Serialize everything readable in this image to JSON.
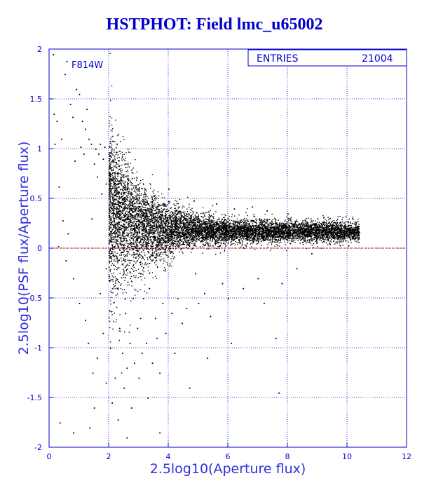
{
  "chart_data": {
    "type": "scatter",
    "title": "HSTPHOT: Field lmc_u65002",
    "xlabel": "2.5log10(Aperture flux)",
    "ylabel": "2.5log10(PSF flux/Aperture flux)",
    "xlim": [
      0,
      12
    ],
    "ylim": [
      -2,
      2
    ],
    "xticks": [
      "0",
      "2",
      "4",
      "6",
      "8",
      "10",
      "12"
    ],
    "yticks": [
      "-2",
      "-1.5",
      "-1",
      "-0.5",
      "0",
      "0.5",
      "1",
      "1.5",
      "2"
    ],
    "grid": true,
    "annotation": "F814W",
    "stats": {
      "label": "ENTRIES",
      "value": "21004"
    },
    "reference_line": {
      "y": 0,
      "color": "#cc0000"
    },
    "marker_color": "#000000",
    "grid_color": "#0000d0",
    "points": [
      [
        0.12,
        1.95
      ],
      [
        0.15,
        1.35
      ],
      [
        0.18,
        1.05
      ],
      [
        0.25,
        1.28
      ],
      [
        0.32,
        0.62
      ],
      [
        0.4,
        1.1
      ],
      [
        0.45,
        0.28
      ],
      [
        0.52,
        1.75
      ],
      [
        0.58,
        1.88
      ],
      [
        0.62,
        0.15
      ],
      [
        0.7,
        1.45
      ],
      [
        0.78,
        1.32
      ],
      [
        0.85,
        0.88
      ],
      [
        0.9,
        1.6
      ],
      [
        1.0,
        1.55
      ],
      [
        1.05,
        1.02
      ],
      [
        1.1,
        1.28
      ],
      [
        1.15,
        0.95
      ],
      [
        1.2,
        1.2
      ],
      [
        1.25,
        1.4
      ],
      [
        1.32,
        1.1
      ],
      [
        1.4,
        1.05
      ],
      [
        1.42,
        0.3
      ],
      [
        1.5,
        0.85
      ],
      [
        1.55,
        1.0
      ],
      [
        1.6,
        0.72
      ],
      [
        1.65,
        0.95
      ],
      [
        1.7,
        1.05
      ],
      [
        1.75,
        0.55
      ],
      [
        1.8,
        0.9
      ],
      [
        1.85,
        1.02
      ],
      [
        1.9,
        0.65
      ],
      [
        0.3,
        0.02
      ],
      [
        0.55,
        -0.12
      ],
      [
        0.8,
        -0.3
      ],
      [
        1.0,
        -0.55
      ],
      [
        1.2,
        -0.72
      ],
      [
        1.3,
        -0.95
      ],
      [
        1.45,
        -1.25
      ],
      [
        1.5,
        -1.6
      ],
      [
        1.6,
        -1.1
      ],
      [
        1.7,
        -0.45
      ],
      [
        1.8,
        -0.85
      ],
      [
        1.9,
        -1.35
      ],
      [
        0.35,
        -1.75
      ],
      [
        0.8,
        -1.85
      ],
      [
        1.35,
        -1.8
      ],
      [
        1.9,
        -0.2
      ],
      [
        2.05,
        0.75
      ],
      [
        2.1,
        -1.55
      ],
      [
        2.15,
        0.88
      ],
      [
        2.2,
        -1.3
      ],
      [
        2.25,
        0.55
      ],
      [
        2.3,
        -1.72
      ],
      [
        2.35,
        -0.8
      ],
      [
        2.4,
        0.65
      ],
      [
        2.45,
        -1.05
      ],
      [
        2.5,
        -1.4
      ],
      [
        2.55,
        -0.65
      ],
      [
        2.6,
        -1.2
      ],
      [
        2.65,
        0.7
      ],
      [
        2.7,
        -0.95
      ],
      [
        2.75,
        -1.6
      ],
      [
        2.8,
        -0.5
      ],
      [
        2.85,
        -1.15
      ],
      [
        2.9,
        0.62
      ],
      [
        2.95,
        -0.8
      ],
      [
        3.0,
        -1.3
      ],
      [
        3.05,
        -0.7
      ],
      [
        3.1,
        -1.05
      ],
      [
        3.15,
        -0.5
      ],
      [
        3.2,
        0.55
      ],
      [
        3.25,
        -0.95
      ],
      [
        3.3,
        -1.5
      ],
      [
        3.35,
        -0.4
      ],
      [
        3.45,
        -1.15
      ],
      [
        3.55,
        -0.7
      ],
      [
        3.6,
        -0.9
      ],
      [
        3.7,
        -1.25
      ],
      [
        3.8,
        -0.55
      ],
      [
        3.9,
        -0.85
      ],
      [
        4.0,
        0.6
      ],
      [
        4.1,
        -0.65
      ],
      [
        4.2,
        -1.05
      ],
      [
        4.3,
        -0.5
      ],
      [
        4.45,
        -0.75
      ],
      [
        4.6,
        -0.6
      ],
      [
        4.7,
        -1.4
      ],
      [
        4.85,
        0.48
      ],
      [
        5.0,
        -0.55
      ],
      [
        5.2,
        -0.45
      ],
      [
        5.4,
        -0.68
      ],
      [
        5.6,
        0.45
      ],
      [
        5.8,
        -0.35
      ],
      [
        6.0,
        -0.5
      ],
      [
        6.2,
        0.4
      ],
      [
        6.5,
        -0.4
      ],
      [
        6.8,
        0.42
      ],
      [
        7.0,
        -0.3
      ],
      [
        7.2,
        -0.55
      ],
      [
        7.3,
        0.38
      ],
      [
        7.6,
        -0.9
      ],
      [
        7.8,
        -0.35
      ],
      [
        8.0,
        0.35
      ],
      [
        8.3,
        -0.2
      ],
      [
        8.5,
        0.28
      ],
      [
        8.8,
        -0.05
      ],
      [
        9.0,
        0.3
      ],
      [
        9.3,
        0.12
      ],
      [
        9.6,
        0.22
      ],
      [
        9.9,
        0.18
      ],
      [
        10.2,
        0.2
      ],
      [
        10.4,
        0.16
      ],
      [
        7.7,
        -1.45
      ],
      [
        6.1,
        -0.95
      ],
      [
        5.3,
        -1.1
      ],
      [
        3.7,
        -1.85
      ],
      [
        2.6,
        -1.9
      ],
      [
        4.9,
        -0.25
      ],
      [
        3.3,
        0.45
      ]
    ]
  }
}
